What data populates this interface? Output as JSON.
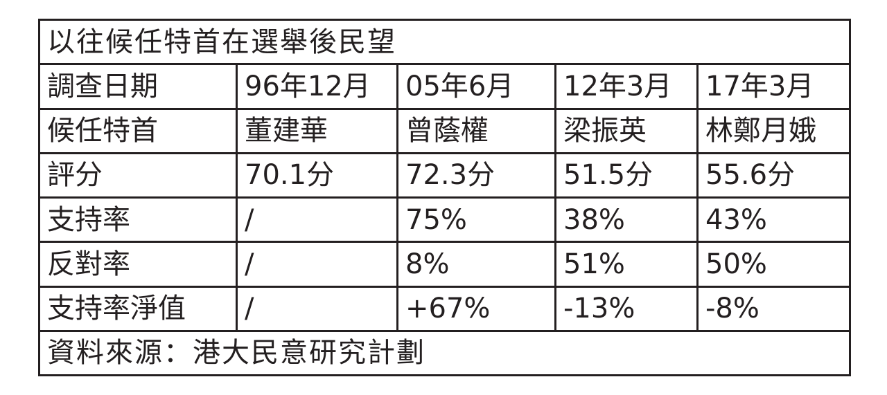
{
  "title": "以往候任特首在選舉後民望",
  "rows": [
    {
      "label": "調查日期",
      "cells": [
        "96年12月",
        "05年6月",
        "12年3月",
        "17年3月"
      ]
    },
    {
      "label": "候任特首",
      "cells": [
        "董建華",
        "曾蔭權",
        "梁振英",
        "林鄭月娥"
      ]
    },
    {
      "label": "評分",
      "cells": [
        "70.1分",
        "72.3分",
        "51.5分",
        "55.6分"
      ]
    },
    {
      "label": "支持率",
      "cells": [
        "/",
        "75%",
        "38%",
        "43%"
      ]
    },
    {
      "label": "反對率",
      "cells": [
        "/",
        "8%",
        "51%",
        "50%"
      ]
    },
    {
      "label": "支持率淨值",
      "cells": [
        "/",
        "+67%",
        "-13%",
        "-8%"
      ]
    }
  ],
  "footer": "資料來源：港大民意研究計劃"
}
